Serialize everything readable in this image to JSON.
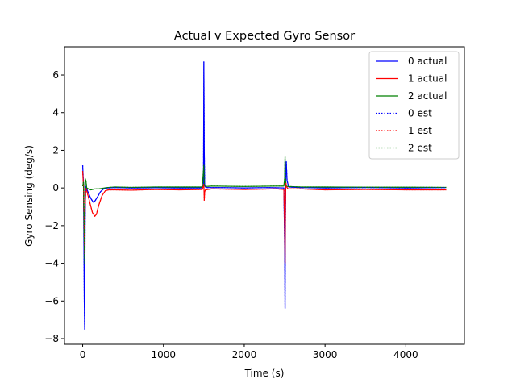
{
  "chart_data": {
    "type": "line",
    "title": "Actual v Expected Gyro Sensor",
    "xlabel": "Time (s)",
    "ylabel": "Gyro Sensing (deg/s)",
    "xlim": [
      -225,
      4725
    ],
    "ylim": [
      -8.3,
      7.5
    ],
    "xticks": [
      0,
      1000,
      2000,
      3000,
      4000
    ],
    "yticks": [
      -8,
      -6,
      -4,
      -2,
      0,
      2,
      4,
      6
    ],
    "grid": false,
    "legend": "upper-right",
    "series": [
      {
        "name": "0 actual",
        "color": "#0000ff",
        "style": "solid",
        "x": [
          0,
          10,
          20,
          25,
          30,
          35,
          40,
          60,
          80,
          100,
          130,
          150,
          180,
          220,
          260,
          300,
          400,
          600,
          900,
          1200,
          1480,
          1495,
          1500,
          1505,
          1510,
          1515,
          1520,
          1540,
          1700,
          2000,
          2300,
          2490,
          2500,
          2505,
          2510,
          2515,
          2520,
          2530,
          2550,
          2700,
          3000,
          3500,
          4000,
          4500
        ],
        "y": [
          1.2,
          0.2,
          -6.0,
          -7.5,
          -2.0,
          0.1,
          0.05,
          -0.15,
          -0.35,
          -0.55,
          -0.75,
          -0.7,
          -0.5,
          -0.2,
          -0.05,
          0.0,
          0.02,
          0.0,
          0.01,
          0.0,
          0.0,
          0.1,
          6.7,
          2.0,
          0.2,
          0.1,
          0.05,
          0.02,
          0.02,
          0.0,
          0.02,
          0.0,
          -3.0,
          -6.4,
          -1.5,
          0.9,
          1.4,
          0.4,
          0.05,
          0.02,
          0.0,
          0.02,
          0.0,
          0.02
        ]
      },
      {
        "name": "1 actual",
        "color": "#ff0000",
        "style": "solid",
        "x": [
          0,
          10,
          20,
          25,
          30,
          40,
          60,
          90,
          120,
          150,
          170,
          200,
          240,
          280,
          320,
          400,
          600,
          900,
          1200,
          1480,
          1500,
          1505,
          1510,
          1520,
          1600,
          2000,
          2400,
          2490,
          2500,
          2505,
          2510,
          2515,
          2520,
          2540,
          2700,
          3000,
          3500,
          4000,
          4500
        ],
        "y": [
          0.9,
          0.1,
          -2.5,
          -3.5,
          -1.0,
          0.0,
          -0.3,
          -0.8,
          -1.3,
          -1.5,
          -1.4,
          -0.9,
          -0.4,
          -0.15,
          -0.1,
          -0.1,
          -0.12,
          -0.08,
          -0.1,
          -0.08,
          0.2,
          -0.65,
          -0.2,
          -0.1,
          -0.05,
          -0.08,
          -0.05,
          -0.08,
          -2.0,
          -4.0,
          -1.0,
          0.3,
          0.1,
          -0.05,
          -0.05,
          -0.1,
          -0.08,
          -0.1,
          -0.1
        ]
      },
      {
        "name": "2 actual",
        "color": "#008000",
        "style": "solid",
        "x": [
          0,
          10,
          20,
          25,
          30,
          40,
          50,
          70,
          100,
          150,
          200,
          300,
          400,
          600,
          900,
          1200,
          1480,
          1500,
          1505,
          1510,
          1520,
          1600,
          2000,
          2400,
          2490,
          2500,
          2505,
          2510,
          2515,
          2520,
          2540,
          2700,
          3000,
          3500,
          4000,
          4500
        ],
        "y": [
          0.1,
          0.3,
          -3.0,
          -4.0,
          0.5,
          0.4,
          0.0,
          -0.05,
          -0.1,
          -0.05,
          -0.05,
          0.02,
          0.05,
          0.03,
          0.05,
          0.05,
          0.05,
          1.2,
          0.3,
          0.1,
          0.08,
          0.1,
          0.08,
          0.1,
          0.1,
          0.5,
          1.65,
          0.7,
          0.2,
          0.1,
          0.08,
          0.05,
          0.05,
          0.04,
          0.04,
          0.03
        ]
      },
      {
        "name": "0 est",
        "color": "#0000ff",
        "style": "dotted",
        "x": [
          0,
          10,
          20,
          25,
          30,
          35,
          40,
          60,
          80,
          100,
          130,
          150,
          180,
          220,
          260,
          300,
          400,
          600,
          900,
          1200,
          1480,
          1495,
          1500,
          1505,
          1510,
          1515,
          1520,
          1540,
          1700,
          2000,
          2300,
          2490,
          2500,
          2505,
          2510,
          2515,
          2520,
          2530,
          2550,
          2700,
          3000,
          3500,
          4000,
          4500
        ],
        "y": [
          1.2,
          0.2,
          -6.0,
          -7.5,
          -2.0,
          0.1,
          0.05,
          -0.15,
          -0.35,
          -0.55,
          -0.75,
          -0.7,
          -0.5,
          -0.2,
          -0.05,
          0.0,
          0.02,
          0.0,
          0.01,
          0.0,
          0.0,
          0.1,
          6.7,
          2.0,
          0.2,
          0.1,
          0.05,
          0.02,
          0.02,
          0.0,
          0.02,
          0.0,
          -3.0,
          -6.4,
          -1.5,
          0.9,
          1.4,
          0.4,
          0.05,
          0.02,
          0.0,
          0.02,
          0.0,
          0.02
        ]
      },
      {
        "name": "1 est",
        "color": "#ff0000",
        "style": "dotted",
        "x": [
          0,
          10,
          20,
          25,
          30,
          40,
          60,
          90,
          120,
          150,
          170,
          200,
          240,
          280,
          320,
          400,
          600,
          900,
          1200,
          1480,
          1500,
          1505,
          1510,
          1520,
          1600,
          2000,
          2400,
          2490,
          2500,
          2505,
          2510,
          2515,
          2520,
          2540,
          2700,
          3000,
          3500,
          4000,
          4500
        ],
        "y": [
          0.9,
          0.1,
          -2.5,
          -3.5,
          -1.0,
          0.0,
          -0.3,
          -0.8,
          -1.3,
          -1.5,
          -1.4,
          -0.9,
          -0.4,
          -0.15,
          -0.1,
          -0.1,
          -0.12,
          -0.08,
          -0.1,
          -0.08,
          0.2,
          -0.65,
          -0.2,
          -0.1,
          -0.05,
          -0.08,
          -0.05,
          -0.08,
          -2.0,
          -4.0,
          -1.0,
          0.3,
          0.1,
          -0.05,
          -0.05,
          -0.1,
          -0.08,
          -0.1,
          -0.1
        ]
      },
      {
        "name": "2 est",
        "color": "#008000",
        "style": "dotted",
        "x": [
          0,
          10,
          20,
          25,
          30,
          40,
          50,
          70,
          100,
          150,
          200,
          300,
          400,
          600,
          900,
          1200,
          1480,
          1500,
          1505,
          1510,
          1520,
          1600,
          2000,
          2400,
          2490,
          2500,
          2505,
          2510,
          2515,
          2520,
          2540,
          2700,
          3000,
          3500,
          4000,
          4500
        ],
        "y": [
          0.1,
          0.3,
          -3.0,
          -4.0,
          0.5,
          0.4,
          0.0,
          -0.05,
          -0.1,
          -0.05,
          -0.05,
          0.02,
          0.05,
          0.03,
          0.05,
          0.05,
          0.05,
          1.2,
          0.3,
          0.1,
          0.08,
          0.1,
          0.08,
          0.1,
          0.1,
          0.5,
          1.65,
          0.7,
          0.2,
          0.1,
          0.08,
          0.05,
          0.05,
          0.04,
          0.04,
          0.03
        ]
      }
    ]
  }
}
